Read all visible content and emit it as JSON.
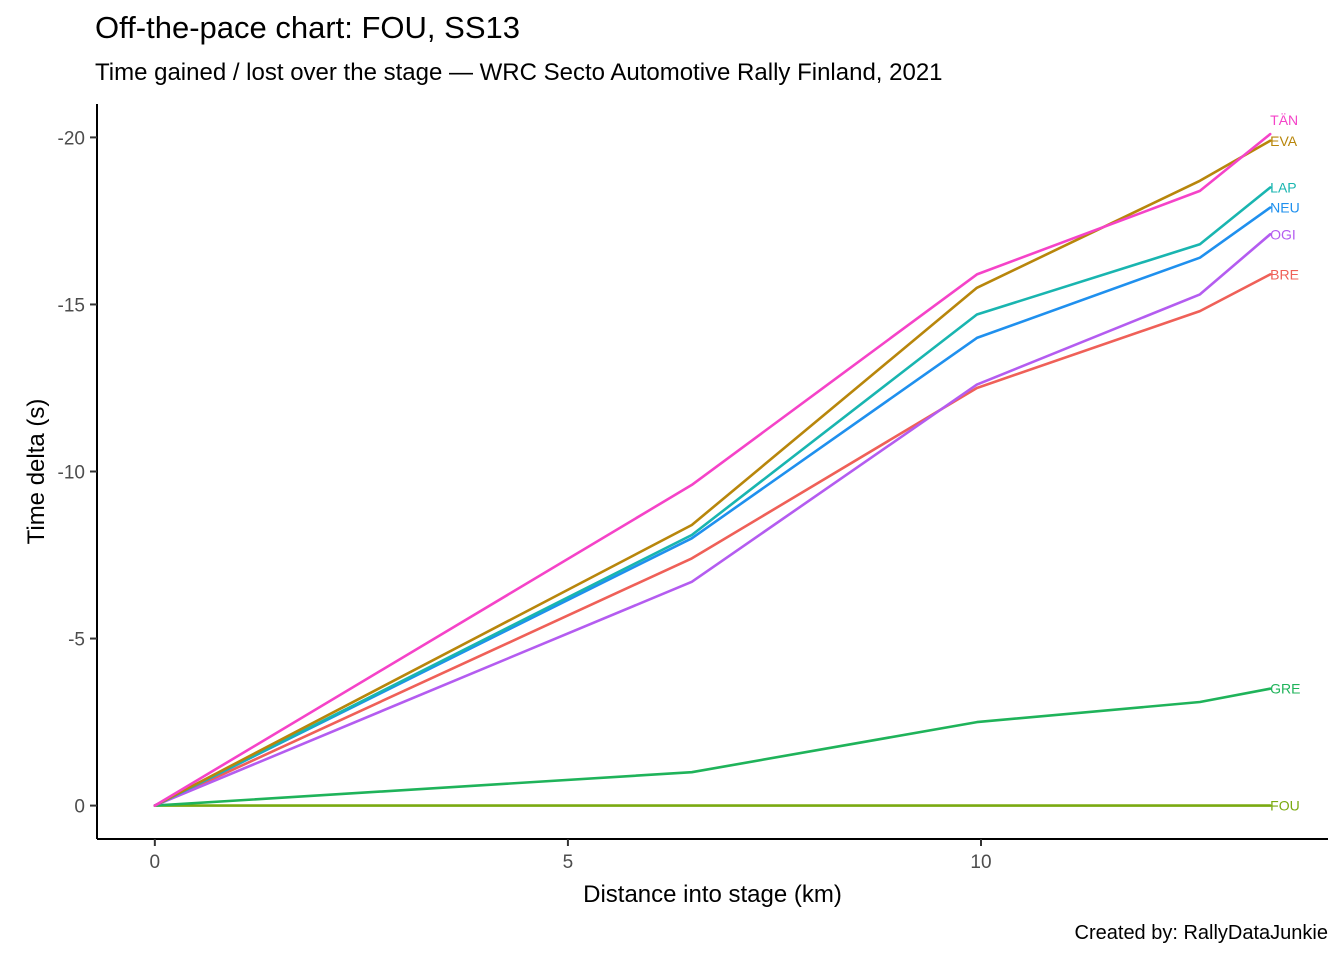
{
  "chart_data": {
    "type": "line",
    "title": "Off-the-pace chart: FOU, SS13",
    "subtitle": "Time gained / lost over the stage — WRC Secto Automotive Rally Finland, 2021",
    "caption": "Created by: RallyDataJunkie",
    "xlabel": "Distance into stage (km)",
    "ylabel": "Time delta (s)",
    "xlim": [
      -0.7,
      14.2
    ],
    "ylim": [
      1,
      -21
    ],
    "y_reversed": true,
    "x_ticks": [
      0,
      5,
      10
    ],
    "y_ticks": [
      0,
      -5,
      -10,
      -15,
      -20
    ],
    "grid": false,
    "legend": "none",
    "x": [
      0,
      6.5,
      9.95,
      12.65,
      13.5
    ],
    "series": [
      {
        "name": "TÄN",
        "color": "#f543c8",
        "values": [
          0,
          -9.6,
          -15.9,
          -18.4,
          -20.1
        ]
      },
      {
        "name": "EVA",
        "color": "#b8860b",
        "values": [
          0,
          -8.4,
          -15.5,
          -18.7,
          -19.9
        ]
      },
      {
        "name": "LAP",
        "color": "#19b5b0",
        "values": [
          0,
          -8.1,
          -14.7,
          -16.8,
          -18.5
        ]
      },
      {
        "name": "NEU",
        "color": "#1f90ee",
        "values": [
          0,
          -8.0,
          -14.0,
          -16.4,
          -17.9
        ]
      },
      {
        "name": "OGI",
        "color": "#b45cf0",
        "values": [
          0,
          -6.7,
          -12.6,
          -15.3,
          -17.1
        ]
      },
      {
        "name": "BRE",
        "color": "#ef6058",
        "values": [
          0,
          -7.4,
          -12.5,
          -14.8,
          -15.9
        ]
      },
      {
        "name": "GRE",
        "color": "#1fb35a",
        "values": [
          0,
          -1.0,
          -2.5,
          -3.1,
          -3.5
        ]
      },
      {
        "name": "FOU",
        "color": "#7aaa10",
        "values": [
          0,
          0,
          0,
          0,
          0
        ]
      }
    ]
  }
}
